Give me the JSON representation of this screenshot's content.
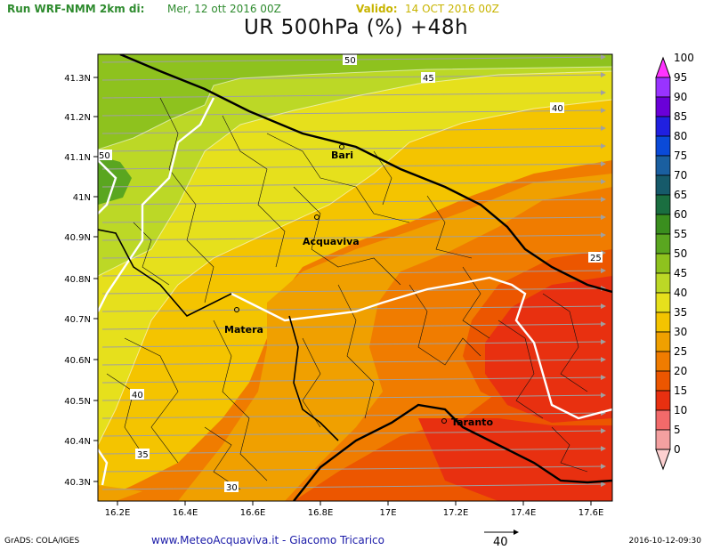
{
  "header": {
    "run_label": "Run WRF-NMM 2km di:",
    "issue_time": "Mer, 12 ott 2016 00Z",
    "valid_label": "Valido:",
    "valid_time": "14 OCT 2016 00Z",
    "title": "UR 500hPa (%) +48h"
  },
  "map": {
    "lon_ticks": [
      "16.2E",
      "16.4E",
      "16.6E",
      "16.8E",
      "17E",
      "17.2E",
      "17.4E",
      "17.6E"
    ],
    "lat_ticks": [
      "41.3N",
      "41.2N",
      "41.1N",
      "41N",
      "40.9N",
      "40.8N",
      "40.7N",
      "40.6N",
      "40.5N",
      "40.4N",
      "40.3N"
    ],
    "contour_labels": [
      "50",
      "45",
      "40",
      "50",
      "40",
      "35",
      "30",
      "25"
    ],
    "cities": [
      "Bari",
      "Acquaviva",
      "Matera",
      "Taranto"
    ]
  },
  "colorbar": {
    "labels": [
      "100",
      "95",
      "90",
      "85",
      "80",
      "75",
      "70",
      "65",
      "60",
      "55",
      "50",
      "45",
      "40",
      "35",
      "30",
      "25",
      "20",
      "15",
      "10",
      "5",
      "0"
    ],
    "colors": [
      "#ff33ff",
      "#9933ff",
      "#6a00d8",
      "#2020e0",
      "#0a4ad8",
      "#1a5fa0",
      "#165a6a",
      "#1a6e40",
      "#3a8e1e",
      "#5aa620",
      "#8ec21e",
      "#bcd826",
      "#e6e01c",
      "#f4c400",
      "#f0a000",
      "#f07c00",
      "#ec5600",
      "#e83010",
      "#f26a6a",
      "#f4a0a0",
      "#fcd0d0"
    ]
  },
  "footer": {
    "grads": "GrADS: COLA/IGES",
    "credit": "www.MeteoAcquaviva.it - Giacomo Tricarico",
    "vector_ref": "40",
    "timestamp": "2016-10-12-09:30"
  }
}
